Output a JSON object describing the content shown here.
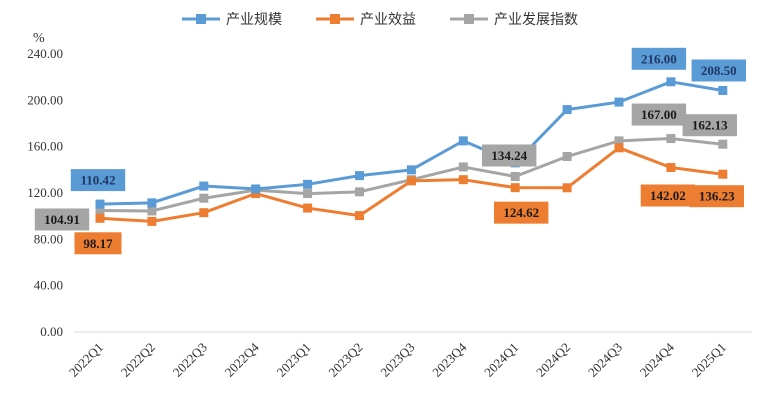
{
  "chart_data": {
    "type": "line",
    "unit_label": "%",
    "ylim": [
      0,
      240
    ],
    "yticks": [
      "0.00",
      "40.00",
      "80.00",
      "120.00",
      "160.00",
      "200.00",
      "240.00"
    ],
    "categories": [
      "2022Q1",
      "2022Q2",
      "2022Q3",
      "2022Q4",
      "2023Q1",
      "2023Q2",
      "2023Q3",
      "2023Q4",
      "2024Q1",
      "2024Q2",
      "2024Q3",
      "2024Q4",
      "2025Q1"
    ],
    "legend_position": "top",
    "grid": false,
    "series": [
      {
        "name": "产业规模",
        "color": "#5B9BD5",
        "values": [
          110.42,
          111.5,
          126,
          123.5,
          127.5,
          135,
          140,
          165,
          146,
          192,
          198.5,
          216.0,
          208.5
        ],
        "labels": [
          {
            "index": 0,
            "text": "110.42"
          },
          {
            "index": 11,
            "text": "216.00"
          },
          {
            "index": 12,
            "text": "208.50"
          }
        ]
      },
      {
        "name": "产业效益",
        "color": "#ED7D31",
        "values": [
          98.17,
          95.5,
          103,
          119.5,
          107,
          100.5,
          130.5,
          131.5,
          124.62,
          124.5,
          159,
          142.02,
          136.23
        ],
        "labels": [
          {
            "index": 0,
            "text": "98.17"
          },
          {
            "index": 8,
            "text": "124.62"
          },
          {
            "index": 11,
            "text": "142.02"
          },
          {
            "index": 12,
            "text": "136.23"
          }
        ]
      },
      {
        "name": "产业发展指数",
        "color": "#A5A5A5",
        "values": [
          104.91,
          104.5,
          115.5,
          122.5,
          119.5,
          121,
          131.5,
          142.5,
          134.24,
          151.5,
          165,
          167.0,
          162.13
        ],
        "labels": [
          {
            "index": 0,
            "text": "104.91"
          },
          {
            "index": 8,
            "text": "134.24"
          },
          {
            "index": 11,
            "text": "167.00"
          },
          {
            "index": 12,
            "text": "162.13"
          }
        ]
      }
    ]
  }
}
